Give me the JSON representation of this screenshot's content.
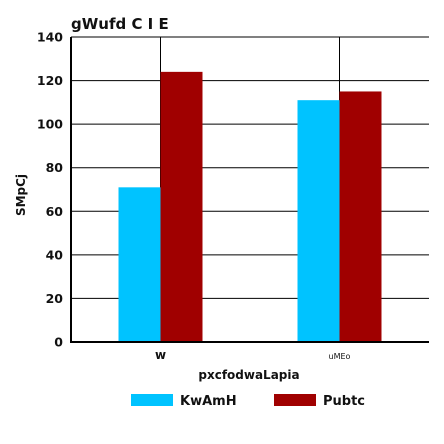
{
  "chart_data": {
    "type": "bar",
    "title": "gWufd C I E",
    "xlabel": "pxcfodwaLapia",
    "ylabel": "SMpCj",
    "categories": [
      "w",
      "uMEo"
    ],
    "series": [
      {
        "name": "KwAmH",
        "color": "#00c3ff",
        "values": [
          71,
          111
        ]
      },
      {
        "name": "Pubtc",
        "color": "#a00000",
        "values": [
          124,
          115
        ]
      }
    ],
    "ylim": [
      0,
      140
    ],
    "yticks": [
      0,
      20,
      40,
      60,
      80,
      100,
      120,
      140
    ],
    "grid": true,
    "legend_position": "bottom"
  }
}
